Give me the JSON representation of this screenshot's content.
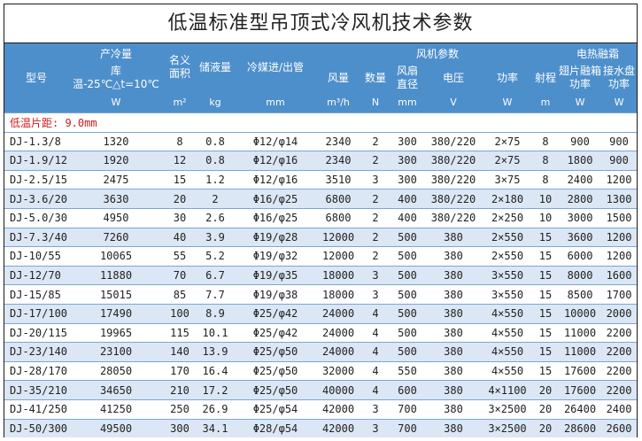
{
  "title": "低温标准型吊顶式冷风机技术参数",
  "headers": {
    "model": "型号",
    "capacity_label": "产冷量",
    "capacity_sub1": "库",
    "capacity_sub2": "温-25℃△t=10℃",
    "capacity_unit": "W",
    "area_label1": "名义",
    "area_label2": "面积",
    "area_unit": "m²",
    "storage_label": "储液量",
    "storage_unit": "kg",
    "pipe_label": "冷媒进/出管",
    "pipe_unit": "mm",
    "fan_group": "风机参数",
    "airflow_label": "风量",
    "airflow_unit": "m³/h",
    "count_label": "数量",
    "count_unit": "N",
    "diameter_label1": "风扇",
    "diameter_label2": "直径",
    "diameter_unit": "mm",
    "voltage_label": "电压",
    "voltage_unit": "V",
    "power_label": "功率",
    "power_unit": "W",
    "range_label": "射程",
    "range_unit": "m",
    "heat_group": "电热融霜",
    "fin_label1": "翅片融箱",
    "fin_label2": "功率",
    "fin_unit": "W",
    "drain_label1": "接水盘",
    "drain_label2": "功率",
    "drain_unit": "W"
  },
  "section_label": "低温片距: 9.0mm",
  "rows": [
    {
      "model": "DJ-1.3/8",
      "capacity": "1320",
      "area": "8",
      "storage": "0.8",
      "pipe": "Φ12/φ14",
      "airflow": "2340",
      "count": "2",
      "diameter": "300",
      "voltage": "380/220",
      "power": "2×75",
      "range": "8",
      "fin": "900",
      "drain": "900"
    },
    {
      "model": "DJ-1.9/12",
      "capacity": "1920",
      "area": "12",
      "storage": "0.8",
      "pipe": "Φ12/φ16",
      "airflow": "2340",
      "count": "2",
      "diameter": "300",
      "voltage": "380/220",
      "power": "2×75",
      "range": "8",
      "fin": "1800",
      "drain": "900"
    },
    {
      "model": "DJ-2.5/15",
      "capacity": "2475",
      "area": "15",
      "storage": "1.2",
      "pipe": "Φ12/φ16",
      "airflow": "3510",
      "count": "3",
      "diameter": "300",
      "voltage": "380/220",
      "power": "3×75",
      "range": "8",
      "fin": "2400",
      "drain": "1200"
    },
    {
      "model": "DJ-3.6/20",
      "capacity": "3630",
      "area": "20",
      "storage": "2",
      "pipe": "Φ16/φ25",
      "airflow": "6800",
      "count": "2",
      "diameter": "400",
      "voltage": "380/220",
      "power": "2×180",
      "range": "10",
      "fin": "2800",
      "drain": "1300"
    },
    {
      "model": "DJ-5.0/30",
      "capacity": "4950",
      "area": "30",
      "storage": "2.6",
      "pipe": "Φ16/φ25",
      "airflow": "6800",
      "count": "2",
      "diameter": "400",
      "voltage": "380/220",
      "power": "2×250",
      "range": "10",
      "fin": "3000",
      "drain": "1500"
    },
    {
      "model": "DJ-7.3/40",
      "capacity": "7260",
      "area": "40",
      "storage": "3.9",
      "pipe": "Φ19/φ28",
      "airflow": "12000",
      "count": "2",
      "diameter": "500",
      "voltage": "380",
      "power": "2×550",
      "range": "15",
      "fin": "3600",
      "drain": "1200"
    },
    {
      "model": "DJ-10/55",
      "capacity": "10065",
      "area": "55",
      "storage": "5.2",
      "pipe": "Φ19/φ32",
      "airflow": "12000",
      "count": "2",
      "diameter": "500",
      "voltage": "380",
      "power": "2×550",
      "range": "15",
      "fin": "6000",
      "drain": "1200"
    },
    {
      "model": "DJ-12/70",
      "capacity": "11880",
      "area": "70",
      "storage": "6.7",
      "pipe": "Φ19/φ35",
      "airflow": "18000",
      "count": "3",
      "diameter": "500",
      "voltage": "380",
      "power": "3×550",
      "range": "15",
      "fin": "8000",
      "drain": "1600"
    },
    {
      "model": "DJ-15/85",
      "capacity": "15015",
      "area": "85",
      "storage": "7.7",
      "pipe": "Φ19/φ38",
      "airflow": "18000",
      "count": "3",
      "diameter": "500",
      "voltage": "380",
      "power": "3×550",
      "range": "15",
      "fin": "8500",
      "drain": "1700"
    },
    {
      "model": "DJ-17/100",
      "capacity": "17490",
      "area": "100",
      "storage": "8.9",
      "pipe": "Φ25/φ42",
      "airflow": "24000",
      "count": "4",
      "diameter": "500",
      "voltage": "380",
      "power": "4×550",
      "range": "15",
      "fin": "10000",
      "drain": "2000"
    },
    {
      "model": "DJ-20/115",
      "capacity": "19965",
      "area": "115",
      "storage": "10.1",
      "pipe": "Φ25/φ42",
      "airflow": "24000",
      "count": "4",
      "diameter": "500",
      "voltage": "380",
      "power": "4×550",
      "range": "15",
      "fin": "11000",
      "drain": "2200"
    },
    {
      "model": "DJ-23/140",
      "capacity": "23100",
      "area": "140",
      "storage": "13.9",
      "pipe": "Φ25/φ50",
      "airflow": "24000",
      "count": "4",
      "diameter": "500",
      "voltage": "380",
      "power": "4×550",
      "range": "15",
      "fin": "11000",
      "drain": "2200"
    },
    {
      "model": "DJ-28/170",
      "capacity": "28050",
      "area": "170",
      "storage": "16.4",
      "pipe": "Φ25/φ50",
      "airflow": "32000",
      "count": "4",
      "diameter": "550",
      "voltage": "380",
      "power": "4×550",
      "range": "15",
      "fin": "17600",
      "drain": "2200"
    },
    {
      "model": "DJ-35/210",
      "capacity": "34650",
      "area": "210",
      "storage": "17.2",
      "pipe": "Φ25/φ50",
      "airflow": "40000",
      "count": "4",
      "diameter": "600",
      "voltage": "380",
      "power": "4×1100",
      "range": "20",
      "fin": "17600",
      "drain": "2200"
    },
    {
      "model": "DJ-41/250",
      "capacity": "41250",
      "area": "250",
      "storage": "26.9",
      "pipe": "Φ25/φ54",
      "airflow": "42000",
      "count": "3",
      "diameter": "700",
      "voltage": "380",
      "power": "3×2500",
      "range": "20",
      "fin": "26400",
      "drain": "2400"
    },
    {
      "model": "DJ-50/300",
      "capacity": "49500",
      "area": "300",
      "storage": "34.1",
      "pipe": "Φ28/φ54",
      "airflow": "42000",
      "count": "3",
      "diameter": "700",
      "voltage": "380",
      "power": "3×2500",
      "range": "20",
      "fin": "28600",
      "drain": "2600"
    }
  ]
}
